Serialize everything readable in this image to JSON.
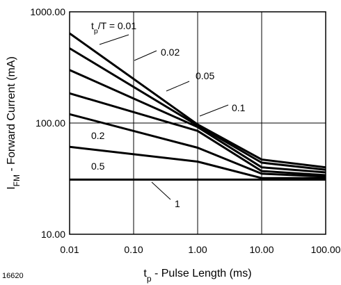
{
  "figure_id": "16620",
  "colors": {
    "ink": "#000000",
    "background": "#ffffff"
  },
  "chart_data": {
    "type": "line",
    "x_scale": "log",
    "y_scale": "log",
    "xlim": [
      0.01,
      100
    ],
    "ylim": [
      10,
      1000
    ],
    "grid": true,
    "legend": "inline labels",
    "xlabel": {
      "main": "t",
      "sub": "p",
      "rest": " - Pulse Length (ms)"
    },
    "ylabel": {
      "main": "I",
      "sub": "FM",
      "rest": " - Forward Current (mA)"
    },
    "x_ticks": [
      {
        "value": 0.01,
        "label": "0.01"
      },
      {
        "value": 0.1,
        "label": "0.10"
      },
      {
        "value": 1,
        "label": "1.00"
      },
      {
        "value": 10,
        "label": "10.00"
      },
      {
        "value": 100,
        "label": "100.00"
      }
    ],
    "y_ticks": [
      {
        "value": 10,
        "label": "10.00"
      },
      {
        "value": 100,
        "label": "100.00"
      },
      {
        "value": 1000,
        "label": "1000.00"
      }
    ],
    "series": [
      {
        "name": "tp/T = 0.01",
        "label": {
          "main": "t",
          "sub": "p",
          "rest": "/T = 0.01"
        },
        "x": [
          0.01,
          1,
          10,
          100
        ],
        "y": [
          640,
          97,
          47,
          40
        ]
      },
      {
        "name": "0.02",
        "label": {
          "main": "0.02"
        },
        "x": [
          0.01,
          1,
          10,
          100
        ],
        "y": [
          470,
          95,
          44,
          38
        ]
      },
      {
        "name": "0.05",
        "label": {
          "main": "0.05"
        },
        "x": [
          0.01,
          1,
          10,
          100
        ],
        "y": [
          300,
          92,
          40,
          36
        ]
      },
      {
        "name": "0.1",
        "label": {
          "main": "0.1"
        },
        "x": [
          0.01,
          1,
          10,
          100
        ],
        "y": [
          185,
          85,
          37,
          34
        ]
      },
      {
        "name": "0.2",
        "label": {
          "main": "0.2"
        },
        "x": [
          0.01,
          1,
          10,
          100
        ],
        "y": [
          120,
          60,
          35,
          33
        ]
      },
      {
        "name": "0.5",
        "label": {
          "main": "0.5"
        },
        "x": [
          0.01,
          1,
          10,
          100
        ],
        "y": [
          61,
          45,
          32,
          32
        ]
      },
      {
        "name": "1",
        "label": {
          "main": "1"
        },
        "x": [
          0.01,
          100
        ],
        "y": [
          31,
          31
        ]
      }
    ]
  }
}
